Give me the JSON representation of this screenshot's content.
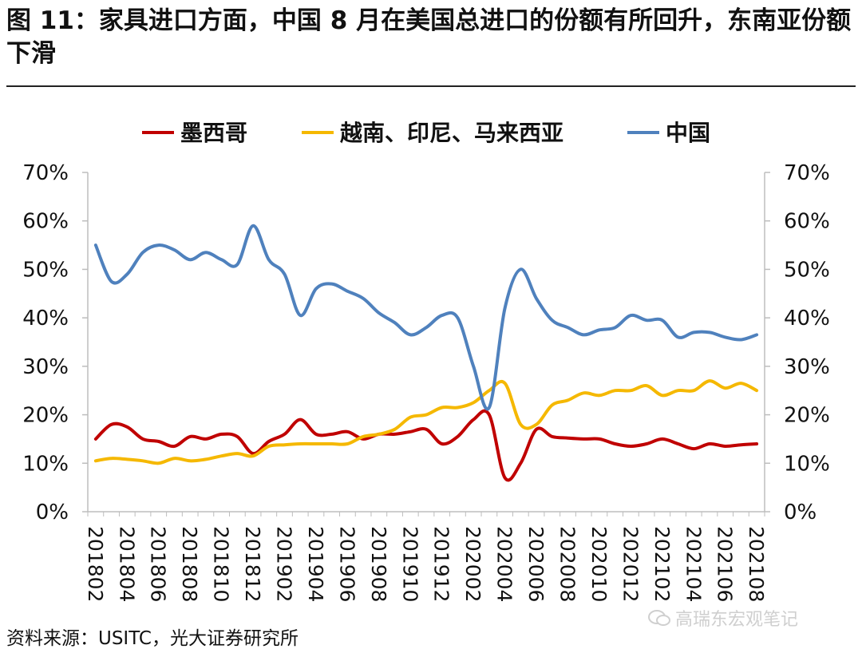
{
  "header": {
    "title": "图 11：家具进口方面，中国 8 月在美国总进口的份额有所回升，东南亚份额下滑"
  },
  "footer": {
    "source": "资料来源：USITC，光大证券研究所",
    "watermark": "高瑞东宏观笔记"
  },
  "colors": {
    "mexico": "#C00000",
    "sea": "#F5B800",
    "china": "#4F81BD"
  },
  "chart_data": {
    "type": "line",
    "title": "",
    "xlabel": "",
    "ylabel": "",
    "ylim": [
      0,
      70
    ],
    "yticks": [
      "0%",
      "10%",
      "20%",
      "30%",
      "40%",
      "50%",
      "60%",
      "70%"
    ],
    "y2ticks": [
      "0%",
      "10%",
      "20%",
      "30%",
      "40%",
      "50%",
      "60%",
      "70%"
    ],
    "grid": false,
    "legend_position": "top-center",
    "x": [
      "201802",
      "201803",
      "201804",
      "201805",
      "201806",
      "201807",
      "201808",
      "201809",
      "201810",
      "201811",
      "201812",
      "201901",
      "201902",
      "201903",
      "201904",
      "201905",
      "201906",
      "201907",
      "201908",
      "201909",
      "201910",
      "201911",
      "201912",
      "202001",
      "202002",
      "202003",
      "202004",
      "202005",
      "202006",
      "202007",
      "202008",
      "202009",
      "202010",
      "202011",
      "202012",
      "202101",
      "202102",
      "202103",
      "202104",
      "202105",
      "202106",
      "202107",
      "202108"
    ],
    "xtick_labels": [
      "201802",
      "201804",
      "201806",
      "201808",
      "201810",
      "201812",
      "201902",
      "201904",
      "201906",
      "201908",
      "201910",
      "201912",
      "202002",
      "202004",
      "202006",
      "202008",
      "202010",
      "202012",
      "202102",
      "202104",
      "202106",
      "202108"
    ],
    "series": [
      {
        "name": "墨西哥",
        "color_key": "mexico",
        "values": [
          15,
          18,
          17.5,
          15,
          14.5,
          13.5,
          15.5,
          15,
          16,
          15.5,
          12,
          14.5,
          16,
          19,
          16,
          16,
          16.5,
          15,
          16,
          16,
          16.5,
          17,
          14,
          15.5,
          19,
          20,
          7,
          10,
          17,
          15.5,
          15.2,
          15,
          15,
          14,
          13.5,
          14,
          15,
          14,
          13,
          14,
          13.5,
          13.8,
          14
        ]
      },
      {
        "name": "越南、印尼、马来西亚",
        "color_key": "sea",
        "values": [
          10.5,
          11,
          10.8,
          10.5,
          10,
          11,
          10.5,
          10.8,
          11.5,
          12,
          11.5,
          13.5,
          13.8,
          14,
          14,
          14,
          14,
          15.5,
          16,
          17,
          19.5,
          20,
          21.5,
          21.5,
          22.5,
          25,
          26.5,
          18,
          18,
          22,
          23,
          24.5,
          24,
          25,
          25,
          26,
          24,
          25,
          25,
          27,
          25.5,
          26.5,
          25
        ]
      },
      {
        "name": "中国",
        "color_key": "china",
        "values": [
          55,
          47.5,
          49,
          53.5,
          55,
          54,
          52,
          53.5,
          52,
          51,
          59,
          52,
          49,
          40.5,
          46,
          47,
          45.5,
          44,
          41,
          39,
          36.5,
          38,
          40.5,
          40,
          30,
          21.5,
          42,
          50,
          44,
          39.5,
          38,
          36.5,
          37.5,
          38,
          40.5,
          39.5,
          39.5,
          36,
          37,
          37,
          36,
          35.5,
          36.5
        ]
      }
    ]
  }
}
